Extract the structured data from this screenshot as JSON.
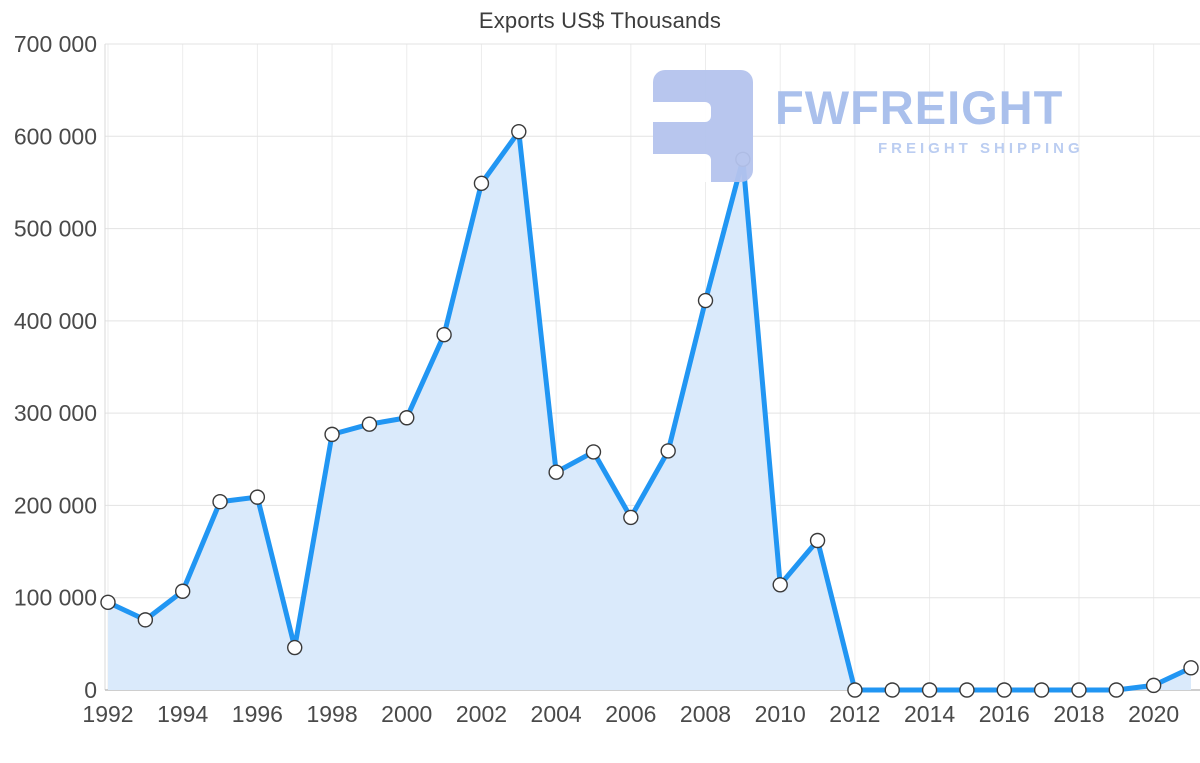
{
  "chart_data": {
    "type": "area",
    "title": "Exports US$ Thousands",
    "x": [
      1992,
      1993,
      1994,
      1995,
      1996,
      1997,
      1998,
      1999,
      2000,
      2001,
      2002,
      2003,
      2004,
      2005,
      2006,
      2007,
      2008,
      2009,
      2010,
      2011,
      2012,
      2013,
      2014,
      2015,
      2016,
      2017,
      2018,
      2019,
      2020,
      2021
    ],
    "values": [
      95000,
      76000,
      107000,
      204000,
      209000,
      46000,
      277000,
      288000,
      295000,
      385000,
      549000,
      605000,
      236000,
      258000,
      187000,
      259000,
      422000,
      575000,
      114000,
      162000,
      0,
      0,
      0,
      0,
      0,
      0,
      0,
      0,
      5000,
      24000
    ],
    "xlabel": "",
    "ylabel": "",
    "ylim": [
      0,
      700000
    ],
    "y_ticks": [
      0,
      100000,
      200000,
      300000,
      400000,
      500000,
      600000,
      700000
    ],
    "y_tick_labels": [
      "0",
      "100 000",
      "200 000",
      "300 000",
      "400 000",
      "500 000",
      "600 000",
      "700 000"
    ],
    "x_ticks": [
      1992,
      1994,
      1996,
      1998,
      2000,
      2002,
      2004,
      2006,
      2008,
      2010,
      2012,
      2014,
      2016,
      2018,
      2020
    ],
    "x_tick_labels": [
      "1992",
      "1994",
      "1996",
      "1998",
      "2000",
      "2002",
      "2004",
      "2006",
      "2008",
      "2010",
      "2012",
      "2014",
      "2016",
      "2018",
      "2020"
    ],
    "grid": true,
    "legend": "none",
    "marker": "circle-white",
    "colors": {
      "line": "#2196f3",
      "area_fill": "#daeafб",
      "fill": "#daeafb",
      "marker_fill": "#ffffff",
      "marker_stroke": "#3a3a3a",
      "grid_h": "#e3e3e3",
      "grid_v": "#ececec",
      "axis": "#bdbdbd",
      "spine": "#d9d9d9",
      "tick_text": "#4a4a4a",
      "title_text": "#3d3d3d"
    }
  },
  "watermark": {
    "brand": "FWFREIGHT",
    "tagline": "FREIGHT SHIPPING",
    "brand_color": "#a6bdeb",
    "tagline_color": "#b8cbf1",
    "icon_color": "#b5c4ee"
  }
}
